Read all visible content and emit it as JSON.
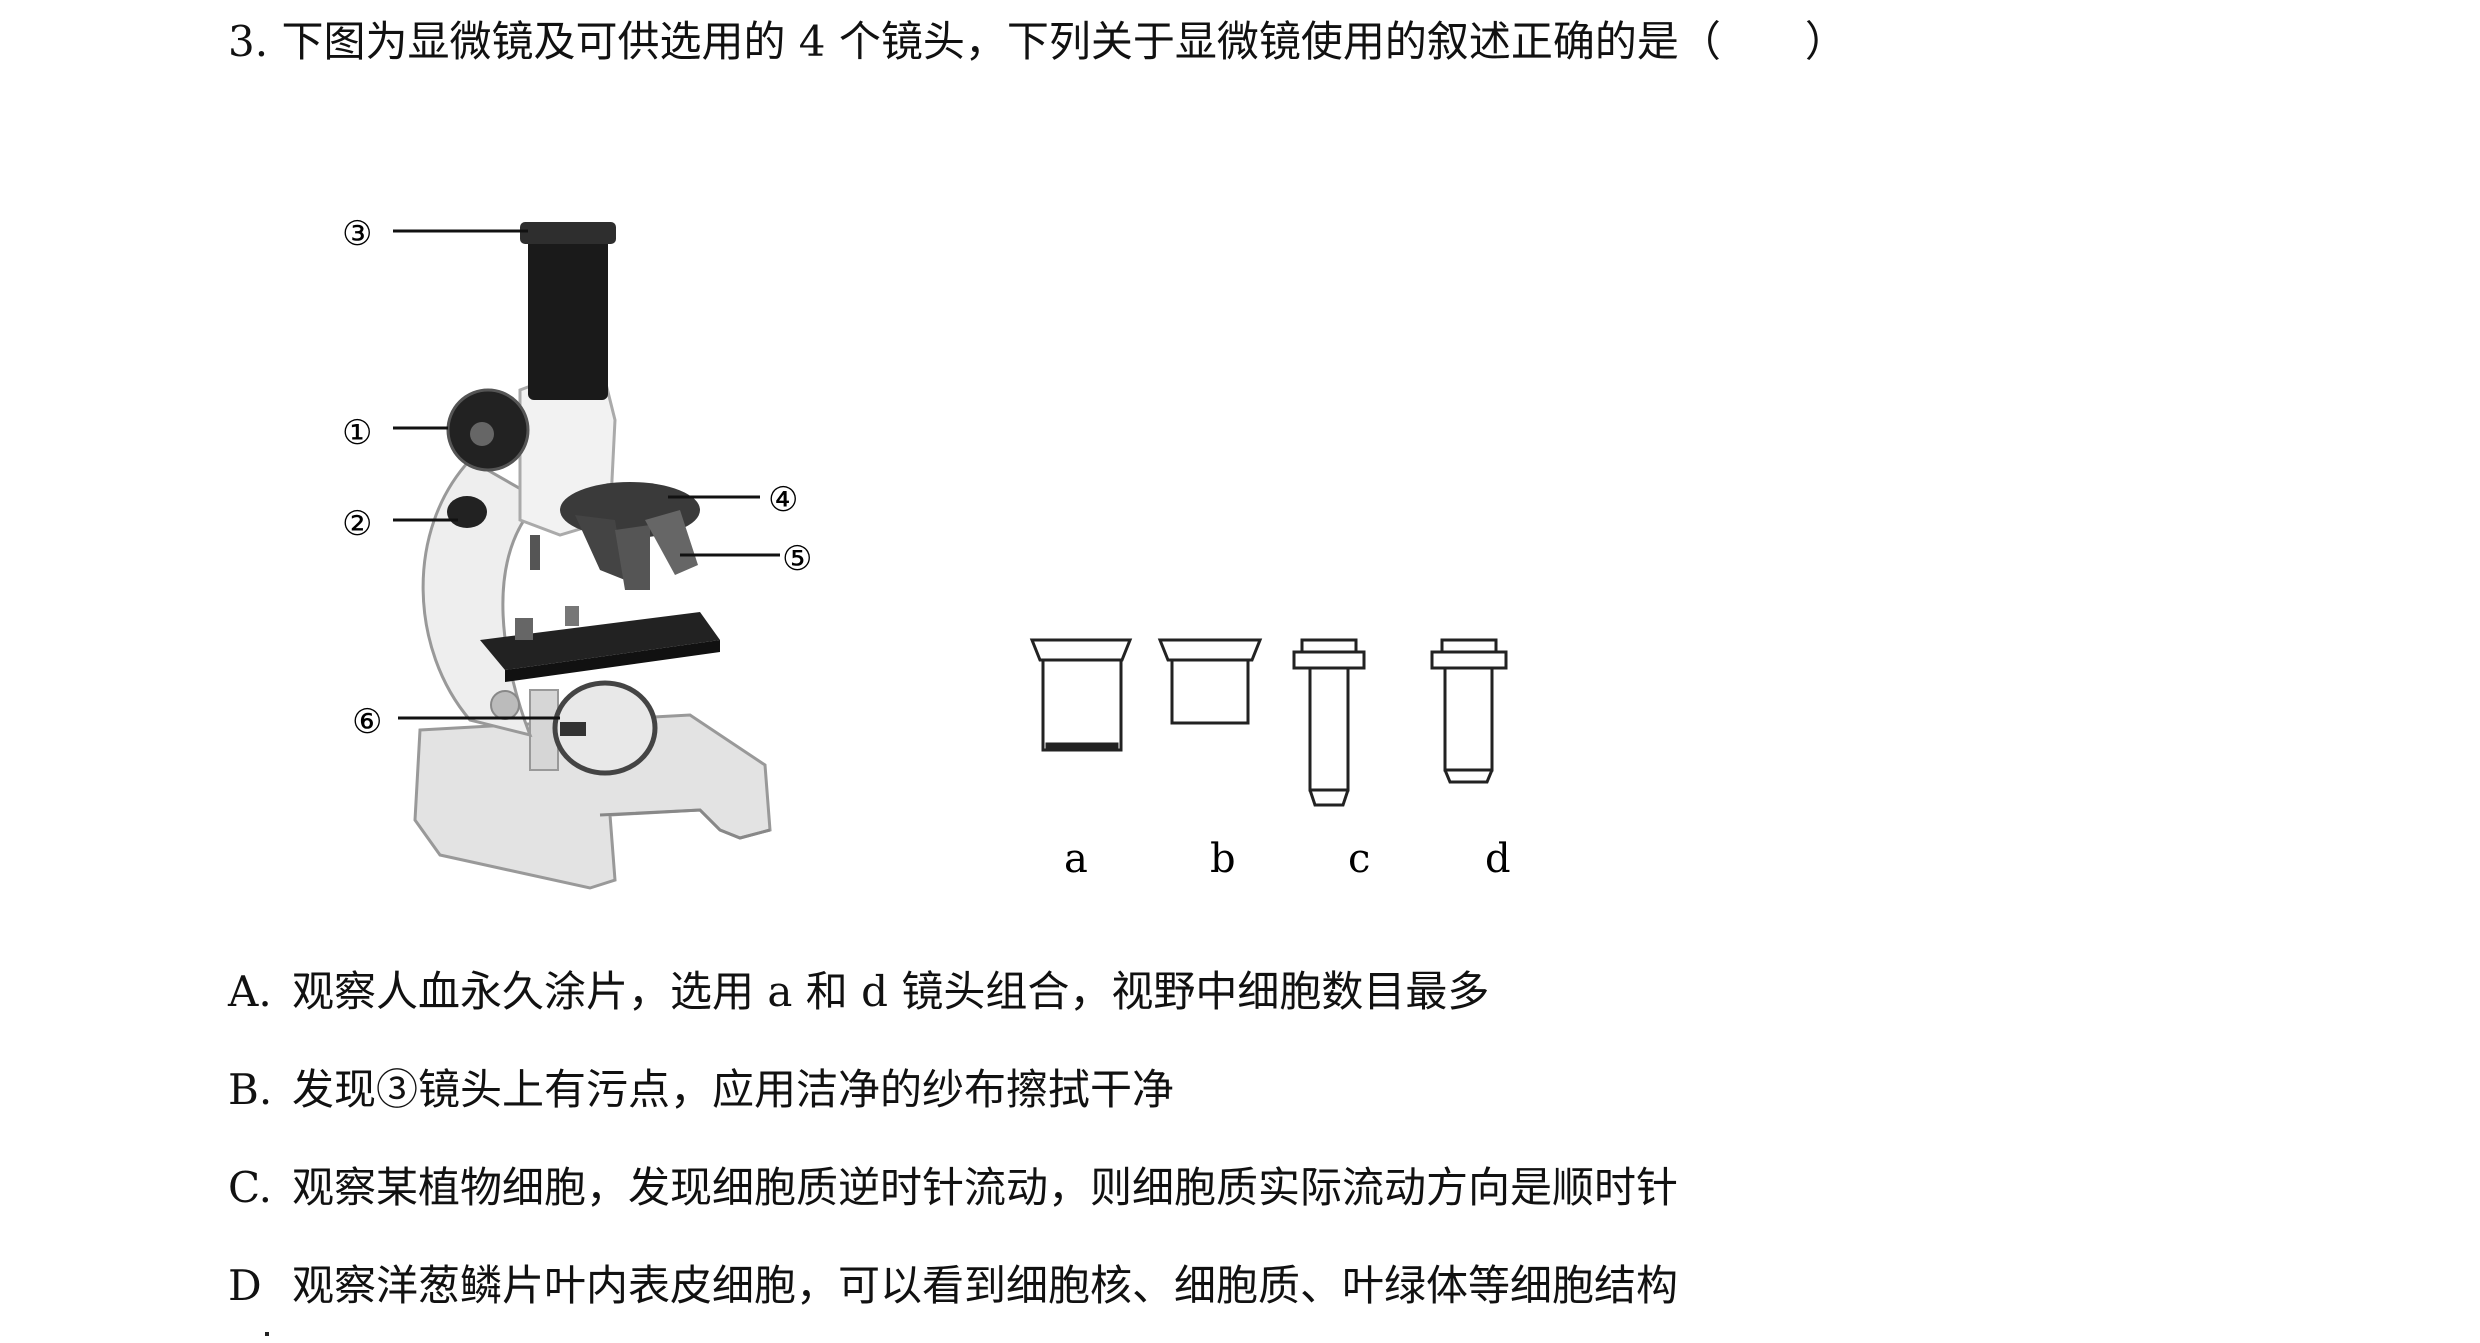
{
  "question": {
    "number": "3.",
    "stem": "下图为显微镜及可供选用的 4 个镜头，下列关于显微镜使用的叙述正确的是（　　）"
  },
  "microscope": {
    "callouts": [
      "①",
      "②",
      "③",
      "④",
      "⑤",
      "⑥"
    ],
    "icon": "microscope-illustration"
  },
  "lenses": {
    "labels": [
      "a",
      "b",
      "c",
      "d"
    ]
  },
  "options": [
    {
      "letter": "A.",
      "text": "观察人血永久涂片，选用 a 和 d 镜头组合，视野中细胞数目最多"
    },
    {
      "letter": "B.",
      "text": "发现③镜头上有污点，应用洁净的纱布擦拭干净"
    },
    {
      "letter": "C.",
      "text": "观察某植物细胞，发现细胞质逆时针流动，则细胞质实际流动方向是顺时针"
    },
    {
      "letter": "D",
      "text": "观察洋葱鳞片叶内表皮细胞，可以看到细胞核、细胞质、叶绿体等细胞结构"
    }
  ]
}
